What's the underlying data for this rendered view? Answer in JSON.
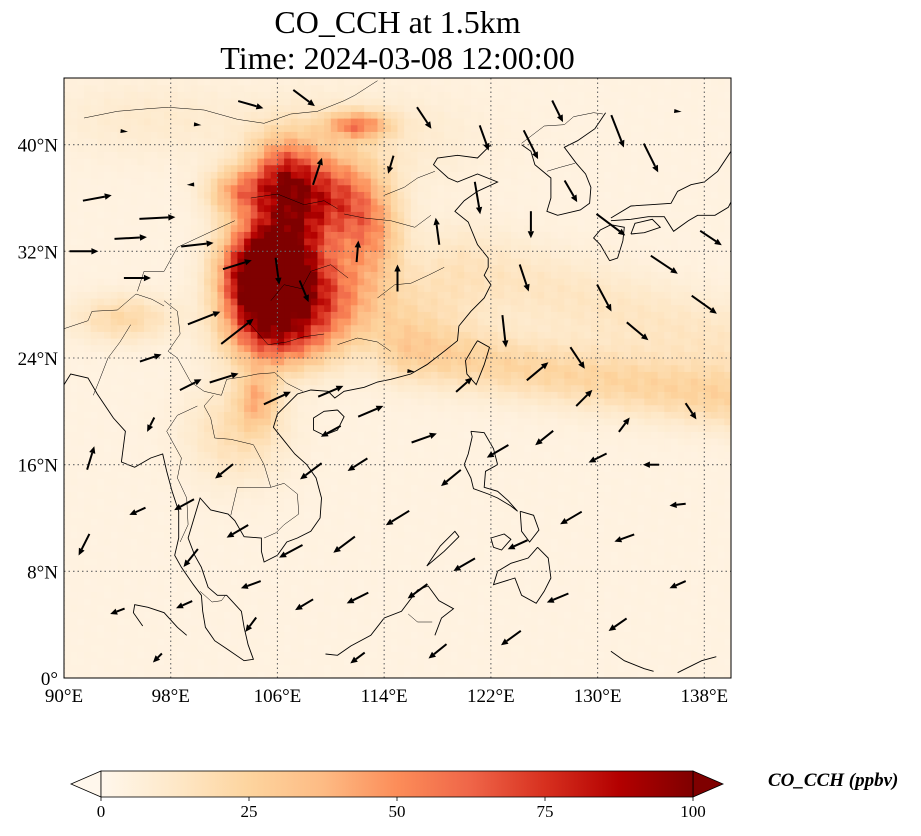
{
  "title_line1": "CO_CCH at 1.5km",
  "title_line2": "Time: 2024-03-08 12:00:00",
  "colorbar_label": "CO_CCH (ppbv)",
  "chart_data": {
    "type": "heatmap",
    "projection": "PlateCarree",
    "variable": "CO_CCH",
    "units": "ppbv",
    "level": "1.5km",
    "xlim": [
      90,
      140
    ],
    "ylim": [
      0,
      45
    ],
    "x_ticks": [
      90,
      98,
      106,
      114,
      122,
      130,
      138
    ],
    "x_tick_labels": [
      "90°E",
      "98°E",
      "106°E",
      "114°E",
      "122°E",
      "130°E",
      "138°E"
    ],
    "y_ticks": [
      0,
      8,
      16,
      24,
      32,
      40
    ],
    "y_tick_labels": [
      "0°",
      "8°N",
      "16°N",
      "24°N",
      "32°N",
      "40°N"
    ],
    "gridlines": "dotted",
    "colormap": "OrRd",
    "colormap_stops": [
      "#fff7ec",
      "#fee8c8",
      "#fdd49e",
      "#fdbb84",
      "#fc8d59",
      "#ef6548",
      "#d7301f",
      "#b30000",
      "#7f0000"
    ],
    "color_range": [
      0,
      100
    ],
    "colorbar_extend": "both",
    "colorbar_ticks": [
      0,
      25,
      50,
      75,
      100
    ],
    "colorbar_tick_labels": [
      "0",
      "25",
      "50",
      "75",
      "100"
    ],
    "plumes": [
      {
        "lon": 104.5,
        "lat": 30.0,
        "sx": 1.8,
        "sy": 2.6,
        "value": 110
      },
      {
        "lon": 107.0,
        "lat": 33.0,
        "sx": 2.0,
        "sy": 3.5,
        "value": 65
      },
      {
        "lon": 108.5,
        "lat": 28.5,
        "sx": 3.0,
        "sy": 2.5,
        "value": 60
      },
      {
        "lon": 106.5,
        "lat": 37.5,
        "sx": 1.8,
        "sy": 2.0,
        "value": 55
      },
      {
        "lon": 110.5,
        "lat": 36.0,
        "sx": 2.0,
        "sy": 2.2,
        "value": 50
      },
      {
        "lon": 113.0,
        "lat": 33.5,
        "sx": 1.6,
        "sy": 2.5,
        "value": 35
      },
      {
        "lon": 112.0,
        "lat": 41.5,
        "sx": 1.6,
        "sy": 0.7,
        "value": 45
      },
      {
        "lon": 103.0,
        "lat": 36.5,
        "sx": 1.5,
        "sy": 1.2,
        "value": 35
      },
      {
        "lon": 106.0,
        "lat": 25.5,
        "sx": 2.5,
        "sy": 1.6,
        "value": 40
      },
      {
        "lon": 104.5,
        "lat": 21.0,
        "sx": 1.0,
        "sy": 1.5,
        "value": 30
      },
      {
        "lon": 94.5,
        "lat": 27.0,
        "sx": 2.5,
        "sy": 1.2,
        "value": 18
      },
      {
        "lon": 116.0,
        "lat": 27.5,
        "sx": 3.5,
        "sy": 2.5,
        "value": 12
      },
      {
        "lon": 103.0,
        "lat": 18.5,
        "sx": 2.5,
        "sy": 2.5,
        "value": 15
      },
      {
        "lon": 112.0,
        "lat": 40.5,
        "sx": 6.0,
        "sy": 2.5,
        "value": 8
      },
      {
        "lon": 96.0,
        "lat": 42.0,
        "sx": 5.0,
        "sy": 2.0,
        "value": 6
      }
    ],
    "bands": [
      {
        "lon0": 116,
        "lat0": 24.5,
        "lon1": 140,
        "lat1": 21.0,
        "width": 1.6,
        "value": 20
      },
      {
        "lon0": 120,
        "lat0": 31.0,
        "lon1": 140,
        "lat1": 25.0,
        "width": 2.2,
        "value": 10
      }
    ],
    "background_value": 4,
    "wind_vectors": [
      {
        "lon": 91.5,
        "lat": 32.0,
        "u": 1.6,
        "v": 0.0
      },
      {
        "lon": 92.5,
        "lat": 36.0,
        "u": 1.6,
        "v": 0.3
      },
      {
        "lon": 95.0,
        "lat": 33.0,
        "u": 1.8,
        "v": 0.1
      },
      {
        "lon": 95.5,
        "lat": 30.0,
        "u": 1.5,
        "v": 0.0
      },
      {
        "lon": 97.0,
        "lat": 34.5,
        "u": 2.0,
        "v": 0.1
      },
      {
        "lon": 100.0,
        "lat": 32.5,
        "u": 1.8,
        "v": 0.2
      },
      {
        "lon": 100.5,
        "lat": 27.0,
        "u": 1.8,
        "v": 0.7
      },
      {
        "lon": 103.0,
        "lat": 31.0,
        "u": 1.6,
        "v": 0.5
      },
      {
        "lon": 106.0,
        "lat": 30.5,
        "u": 0.2,
        "v": -1.5
      },
      {
        "lon": 108.0,
        "lat": 29.0,
        "u": 0.5,
        "v": -1.2
      },
      {
        "lon": 103.0,
        "lat": 26.0,
        "u": 1.8,
        "v": 1.4
      },
      {
        "lon": 102.0,
        "lat": 22.5,
        "u": 1.6,
        "v": 0.5
      },
      {
        "lon": 99.5,
        "lat": 22.0,
        "u": 1.2,
        "v": 0.6
      },
      {
        "lon": 96.5,
        "lat": 24.0,
        "u": 1.2,
        "v": 0.4
      },
      {
        "lon": 106.0,
        "lat": 21.0,
        "u": 1.5,
        "v": 0.7
      },
      {
        "lon": 110.0,
        "lat": 21.5,
        "u": 1.4,
        "v": 0.6
      },
      {
        "lon": 113.0,
        "lat": 20.0,
        "u": 1.4,
        "v": 0.6
      },
      {
        "lon": 117.0,
        "lat": 18.0,
        "u": 1.4,
        "v": 0.5
      },
      {
        "lon": 120.0,
        "lat": 22.0,
        "u": 0.9,
        "v": 0.8
      },
      {
        "lon": 123.0,
        "lat": 26.0,
        "u": 0.2,
        "v": -1.8
      },
      {
        "lon": 125.5,
        "lat": 23.0,
        "u": 1.2,
        "v": 1.0
      },
      {
        "lon": 129.0,
        "lat": 21.0,
        "u": 0.9,
        "v": 0.9
      },
      {
        "lon": 132.0,
        "lat": 19.0,
        "u": 0.6,
        "v": 0.8
      },
      {
        "lon": 137.0,
        "lat": 20.0,
        "u": 0.6,
        "v": -0.9
      },
      {
        "lon": 126.0,
        "lat": 18.0,
        "u": -1.0,
        "v": -0.8
      },
      {
        "lon": 122.5,
        "lat": 17.0,
        "u": -1.2,
        "v": -0.7
      },
      {
        "lon": 119.0,
        "lat": 15.0,
        "u": -1.1,
        "v": -0.9
      },
      {
        "lon": 115.0,
        "lat": 12.0,
        "u": -1.3,
        "v": -0.8
      },
      {
        "lon": 111.0,
        "lat": 10.0,
        "u": -1.2,
        "v": -0.9
      },
      {
        "lon": 107.0,
        "lat": 9.5,
        "u": -1.3,
        "v": -0.7
      },
      {
        "lon": 103.0,
        "lat": 11.0,
        "u": -1.2,
        "v": -0.7
      },
      {
        "lon": 99.0,
        "lat": 13.0,
        "u": -1.1,
        "v": -0.6
      },
      {
        "lon": 95.5,
        "lat": 12.5,
        "u": -0.9,
        "v": -0.4
      },
      {
        "lon": 91.5,
        "lat": 10.0,
        "u": -0.6,
        "v": -1.2
      },
      {
        "lon": 92.0,
        "lat": 16.5,
        "u": 0.4,
        "v": 1.3
      },
      {
        "lon": 96.5,
        "lat": 19.0,
        "u": -0.4,
        "v": -0.8
      },
      {
        "lon": 94.0,
        "lat": 5.0,
        "u": -0.8,
        "v": -0.3
      },
      {
        "lon": 99.0,
        "lat": 5.5,
        "u": -0.9,
        "v": -0.4
      },
      {
        "lon": 104.0,
        "lat": 4.0,
        "u": -0.6,
        "v": -0.8
      },
      {
        "lon": 108.0,
        "lat": 5.5,
        "u": -1.0,
        "v": -0.6
      },
      {
        "lon": 112.0,
        "lat": 6.0,
        "u": -1.2,
        "v": -0.6
      },
      {
        "lon": 116.5,
        "lat": 6.5,
        "u": -1.1,
        "v": -0.8
      },
      {
        "lon": 120.0,
        "lat": 8.5,
        "u": -1.2,
        "v": -0.7
      },
      {
        "lon": 124.0,
        "lat": 10.0,
        "u": -1.1,
        "v": -0.5
      },
      {
        "lon": 128.0,
        "lat": 12.0,
        "u": -1.2,
        "v": -0.7
      },
      {
        "lon": 132.0,
        "lat": 10.5,
        "u": -1.1,
        "v": -0.4
      },
      {
        "lon": 136.0,
        "lat": 13.0,
        "u": -0.9,
        "v": -0.1
      },
      {
        "lon": 127.0,
        "lat": 6.0,
        "u": -1.2,
        "v": -0.5
      },
      {
        "lon": 131.5,
        "lat": 4.0,
        "u": -1.0,
        "v": -0.7
      },
      {
        "lon": 136.0,
        "lat": 7.0,
        "u": -0.9,
        "v": -0.4
      },
      {
        "lon": 123.5,
        "lat": 3.0,
        "u": -1.1,
        "v": -0.8
      },
      {
        "lon": 118.0,
        "lat": 2.0,
        "u": -1.0,
        "v": -0.8
      },
      {
        "lon": 112.0,
        "lat": 1.5,
        "u": -0.8,
        "v": -0.6
      },
      {
        "lon": 97.0,
        "lat": 1.5,
        "u": -0.5,
        "v": -0.5
      },
      {
        "lon": 130.0,
        "lat": 16.5,
        "u": -1.0,
        "v": -0.5
      },
      {
        "lon": 134.0,
        "lat": 16.0,
        "u": -0.9,
        "v": 0.0
      },
      {
        "lon": 108.5,
        "lat": 15.5,
        "u": -1.2,
        "v": -0.9
      },
      {
        "lon": 112.0,
        "lat": 16.0,
        "u": -1.1,
        "v": -0.7
      },
      {
        "lon": 102.0,
        "lat": 15.5,
        "u": -1.0,
        "v": -0.8
      },
      {
        "lon": 99.5,
        "lat": 9.0,
        "u": -0.8,
        "v": -1.0
      },
      {
        "lon": 104.0,
        "lat": 7.0,
        "u": -1.1,
        "v": -0.4
      },
      {
        "lon": 110.0,
        "lat": 18.5,
        "u": -1.1,
        "v": -0.6
      },
      {
        "lon": 116.0,
        "lat": 23.0,
        "u": 0.0,
        "v": 0.0
      },
      {
        "lon": 118.0,
        "lat": 33.5,
        "u": -0.2,
        "v": 1.5
      },
      {
        "lon": 115.0,
        "lat": 30.0,
        "u": 0.0,
        "v": 1.5
      },
      {
        "lon": 112.0,
        "lat": 32.0,
        "u": 0.1,
        "v": 1.2
      },
      {
        "lon": 121.0,
        "lat": 36.0,
        "u": 0.3,
        "v": -1.8
      },
      {
        "lon": 124.5,
        "lat": 30.0,
        "u": 0.5,
        "v": -1.5
      },
      {
        "lon": 125.0,
        "lat": 34.0,
        "u": 0.0,
        "v": -1.5
      },
      {
        "lon": 128.0,
        "lat": 36.5,
        "u": 0.7,
        "v": -1.2
      },
      {
        "lon": 130.5,
        "lat": 28.5,
        "u": 0.8,
        "v": -1.5
      },
      {
        "lon": 133.0,
        "lat": 26.0,
        "u": 1.2,
        "v": -1.0
      },
      {
        "lon": 135.0,
        "lat": 31.0,
        "u": 1.5,
        "v": -1.0
      },
      {
        "lon": 131.0,
        "lat": 34.0,
        "u": 1.6,
        "v": -1.2
      },
      {
        "lon": 138.0,
        "lat": 28.0,
        "u": 1.4,
        "v": -1.0
      },
      {
        "lon": 138.5,
        "lat": 33.0,
        "u": 1.2,
        "v": -0.8
      },
      {
        "lon": 128.5,
        "lat": 24.0,
        "u": 0.8,
        "v": -1.2
      },
      {
        "lon": 121.5,
        "lat": 40.5,
        "u": 0.5,
        "v": -1.4
      },
      {
        "lon": 125.0,
        "lat": 40.0,
        "u": 0.8,
        "v": -1.6
      },
      {
        "lon": 127.0,
        "lat": 42.5,
        "u": 0.6,
        "v": -1.2
      },
      {
        "lon": 131.5,
        "lat": 41.0,
        "u": 0.7,
        "v": -1.8
      },
      {
        "lon": 134.0,
        "lat": 39.0,
        "u": 0.8,
        "v": -1.6
      },
      {
        "lon": 136.0,
        "lat": 42.5,
        "u": 0.0,
        "v": 0.0
      },
      {
        "lon": 117.0,
        "lat": 42.0,
        "u": 0.8,
        "v": -1.2
      },
      {
        "lon": 114.5,
        "lat": 38.5,
        "u": -0.3,
        "v": -1.0
      },
      {
        "lon": 108.0,
        "lat": 43.5,
        "u": 1.2,
        "v": -0.9
      },
      {
        "lon": 104.0,
        "lat": 43.0,
        "u": 1.4,
        "v": -0.4
      },
      {
        "lon": 100.0,
        "lat": 41.5,
        "u": 0.0,
        "v": 0.0
      },
      {
        "lon": 94.5,
        "lat": 41.0,
        "u": 0.0,
        "v": 0.0
      },
      {
        "lon": 99.5,
        "lat": 37.0,
        "u": -0.1,
        "v": 0.0
      },
      {
        "lon": 109.0,
        "lat": 38.0,
        "u": 0.5,
        "v": 1.5
      }
    ]
  }
}
